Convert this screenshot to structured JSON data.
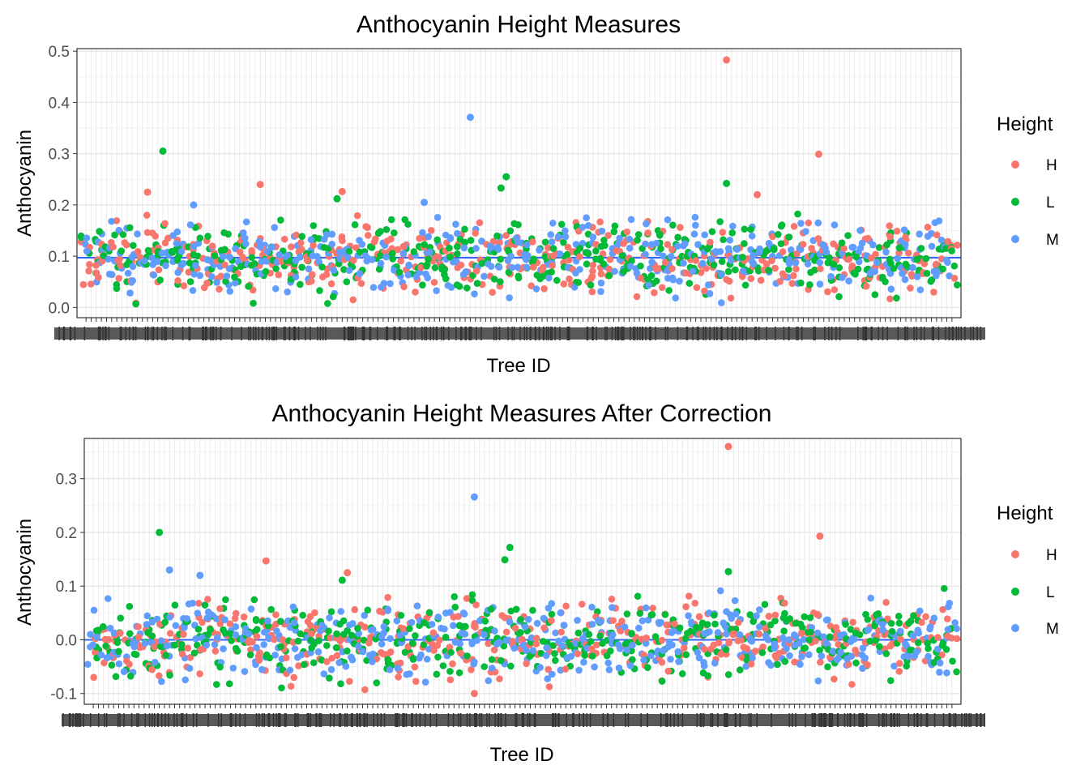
{
  "chart_data": [
    {
      "type": "scatter",
      "title": "Anthocyanin Height Measures",
      "xlabel": "Tree ID",
      "ylabel": "Anthocyanin",
      "ylim": [
        -0.02,
        0.505
      ],
      "yticks": [
        0.0,
        0.1,
        0.2,
        0.3,
        0.4,
        0.5
      ],
      "ytick_labels": [
        "0.0",
        "0.1",
        "0.2",
        "0.3",
        "0.4",
        "0.5"
      ],
      "n_trees": 170,
      "tick_label_note": "overlapping unreadable categorical tree ID labels",
      "reference_line": 0.097,
      "grid": true,
      "legend": {
        "title": "Height",
        "position": "right"
      },
      "series": [
        {
          "name": "H",
          "color": "#F8766D",
          "outliers": [
            {
              "x": 125,
              "y": 0.483
            },
            {
              "x": 143,
              "y": 0.299
            },
            {
              "x": 34,
              "y": 0.24
            },
            {
              "x": 50,
              "y": 0.226
            },
            {
              "x": 12,
              "y": 0.225
            },
            {
              "x": 131,
              "y": 0.22
            }
          ]
        },
        {
          "name": "L",
          "color": "#00BA38",
          "outliers": [
            {
              "x": 15,
              "y": 0.305
            },
            {
              "x": 82,
              "y": 0.255
            },
            {
              "x": 81,
              "y": 0.233
            },
            {
              "x": 125,
              "y": 0.242
            },
            {
              "x": 49,
              "y": 0.212
            }
          ]
        },
        {
          "name": "M",
          "color": "#619CFF",
          "outliers": [
            {
              "x": 75,
              "y": 0.371
            },
            {
              "x": 66,
              "y": 0.205
            },
            {
              "x": 21,
              "y": 0.2
            }
          ]
        }
      ],
      "typical_range": [
        0.0,
        0.2
      ]
    },
    {
      "type": "scatter",
      "title": "Anthocyanin Height Measures After Correction",
      "xlabel": "Tree ID",
      "ylabel": "Anthocyanin",
      "ylim": [
        -0.12,
        0.375
      ],
      "yticks": [
        -0.1,
        0.0,
        0.1,
        0.2,
        0.3
      ],
      "ytick_labels": [
        "-0.1",
        "0.0",
        "0.1",
        "0.2",
        "0.3"
      ],
      "n_trees": 170,
      "tick_label_note": "overlapping unreadable categorical tree ID labels",
      "reference_line": 0.0,
      "grid": true,
      "legend": {
        "title": "Height",
        "position": "right"
      },
      "series": [
        {
          "name": "H",
          "color": "#F8766D",
          "outliers": [
            {
              "x": 125,
              "y": 0.36
            },
            {
              "x": 143,
              "y": 0.193
            },
            {
              "x": 34,
              "y": 0.147
            },
            {
              "x": 50,
              "y": 0.125
            },
            {
              "x": 75,
              "y": -0.1
            }
          ]
        },
        {
          "name": "L",
          "color": "#00BA38",
          "outliers": [
            {
              "x": 13,
              "y": 0.2
            },
            {
              "x": 82,
              "y": 0.172
            },
            {
              "x": 81,
              "y": 0.149
            },
            {
              "x": 125,
              "y": 0.127
            },
            {
              "x": 49,
              "y": 0.111
            }
          ]
        },
        {
          "name": "M",
          "color": "#619CFF",
          "outliers": [
            {
              "x": 75,
              "y": 0.266
            },
            {
              "x": 15,
              "y": 0.13
            },
            {
              "x": 21,
              "y": 0.12
            }
          ]
        }
      ],
      "typical_range": [
        -0.1,
        0.1
      ]
    }
  ]
}
